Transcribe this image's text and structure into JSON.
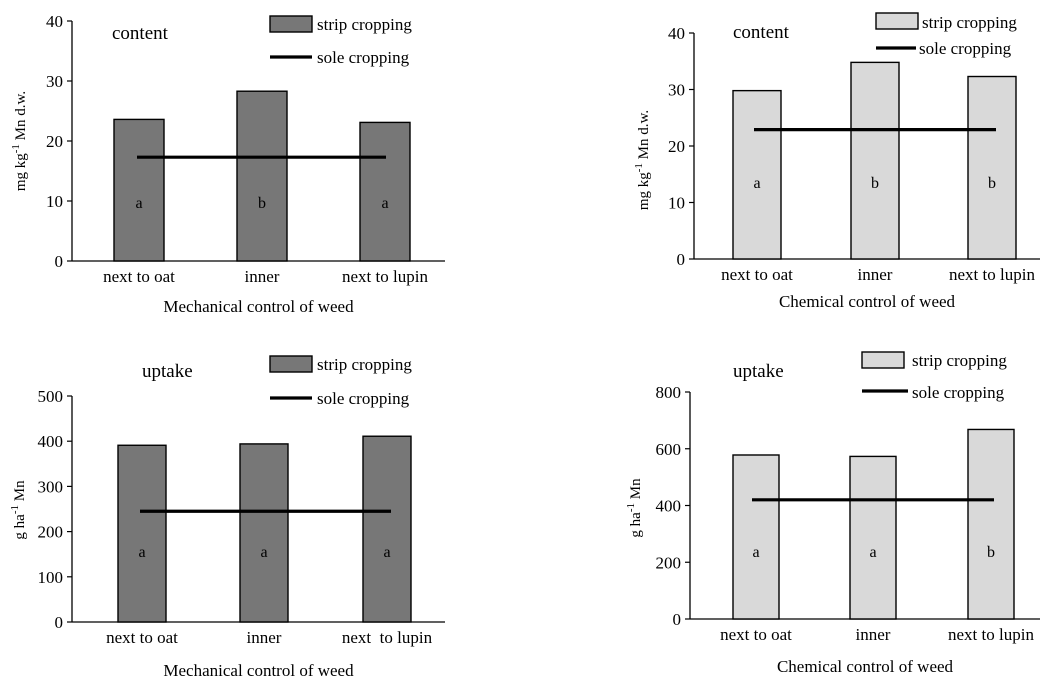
{
  "chart_data": [
    {
      "type": "bar",
      "title": "content",
      "categories": [
        "next to oat",
        "inner",
        "next to lupin"
      ],
      "series": [
        {
          "name": "strip cropping",
          "values": [
            23.6,
            28.3,
            23.1
          ]
        },
        {
          "name": "sole cropping",
          "values": [
            17.3,
            17.3,
            17.3
          ]
        }
      ],
      "letters": [
        "a",
        "b",
        "a"
      ],
      "xlabel": "Mechanical control of weed",
      "ylabel": "mg kg-1 Mn d.w.",
      "ylim": [
        0,
        40
      ],
      "yticks": [
        0,
        10,
        20,
        30,
        40
      ],
      "bar_color": "#777777",
      "legend_position": "top-right",
      "grid": false
    },
    {
      "type": "bar",
      "title": "content",
      "categories": [
        "next to oat",
        "inner",
        "next to lupin"
      ],
      "series": [
        {
          "name": "strip cropping",
          "values": [
            29.8,
            34.8,
            32.3
          ]
        },
        {
          "name": "sole cropping",
          "values": [
            22.9,
            22.9,
            22.9
          ]
        }
      ],
      "letters": [
        "a",
        "b",
        "b"
      ],
      "xlabel": "Chemical control of weed",
      "ylabel": "mg kg-1 Mn d.w.",
      "ylim": [
        0,
        40
      ],
      "yticks": [
        0,
        10,
        20,
        30,
        40
      ],
      "bar_color": "#d9d9d9",
      "legend_position": "top-right",
      "grid": false
    },
    {
      "type": "bar",
      "title": "uptake",
      "categories": [
        "next to oat",
        "inner",
        "next  to lupin"
      ],
      "series": [
        {
          "name": "strip cropping",
          "values": [
            391,
            394,
            411
          ]
        },
        {
          "name": "sole cropping",
          "values": [
            245,
            245,
            245
          ]
        }
      ],
      "letters": [
        "a",
        "a",
        "a"
      ],
      "xlabel": "Mechanical control of weed",
      "ylabel": "g ha-1 Mn",
      "ylim": [
        0,
        500
      ],
      "yticks": [
        0,
        100,
        200,
        300,
        400,
        500
      ],
      "bar_color": "#777777",
      "legend_position": "top-right",
      "grid": false
    },
    {
      "type": "bar",
      "title": "uptake",
      "categories": [
        "next to oat",
        "inner",
        "next to lupin"
      ],
      "series": [
        {
          "name": "strip cropping",
          "values": [
            578,
            573,
            668
          ]
        },
        {
          "name": "sole cropping",
          "values": [
            420,
            420,
            420
          ]
        }
      ],
      "letters": [
        "a",
        "a",
        "b"
      ],
      "xlabel": "Chemical control of weed",
      "ylabel": "g ha-1 Mn",
      "ylim": [
        0,
        800
      ],
      "yticks": [
        0,
        200,
        400,
        600,
        800
      ],
      "bar_color": "#d9d9d9",
      "legend_position": "top-right",
      "grid": false
    }
  ]
}
